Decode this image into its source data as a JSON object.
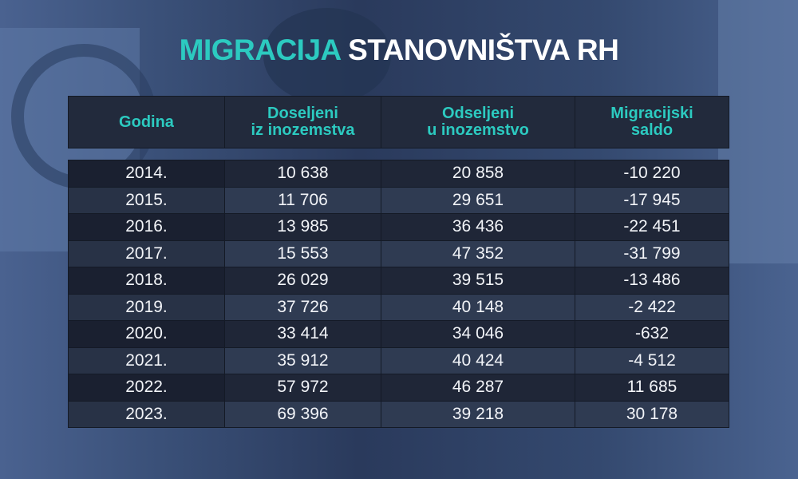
{
  "title": {
    "highlight": "MIGRACIJA",
    "rest": "STANOVNIŠTVA RH"
  },
  "chart_data": {
    "type": "table",
    "title": "MIGRACIJA STANOVNIŠTVA RH",
    "columns": [
      {
        "line1": "Godina",
        "line2": ""
      },
      {
        "line1": "Doseljeni",
        "line2": "iz inozemstva"
      },
      {
        "line1": "Odseljeni",
        "line2": "u inozemstvo"
      },
      {
        "line1": "Migracijski",
        "line2": "saldo"
      }
    ],
    "rows": [
      [
        "2014.",
        "10 638",
        "20 858",
        "-10 220"
      ],
      [
        "2015.",
        "11 706",
        "29 651",
        "-17 945"
      ],
      [
        "2016.",
        "13 985",
        "36 436",
        "-22 451"
      ],
      [
        "2017.",
        "15 553",
        "47 352",
        "-31 799"
      ],
      [
        "2018.",
        "26 029",
        "39 515",
        "-13 486"
      ],
      [
        "2019.",
        "37 726",
        "40 148",
        "-2 422"
      ],
      [
        "2020.",
        "33 414",
        "34 046",
        "-632"
      ],
      [
        "2021.",
        "35 912",
        "40 424",
        "-4 512"
      ],
      [
        "2022.",
        "57 972",
        "46 287",
        "11 685"
      ],
      [
        "2023.",
        "69 396",
        "39 218",
        "30 178"
      ]
    ]
  },
  "colors": {
    "accent": "#2ccac0",
    "row_dark": "#1f2637",
    "row_light": "#2f3b52"
  }
}
